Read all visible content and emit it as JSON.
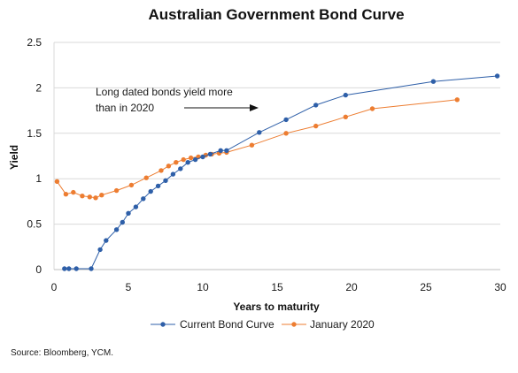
{
  "chart_data": {
    "type": "line",
    "title": "Australian Government Bond Curve",
    "xlabel": "Years to maturity",
    "ylabel": "Yield",
    "xlim": [
      0,
      30
    ],
    "ylim": [
      0,
      2.5
    ],
    "x_ticks": [
      "0",
      "5",
      "10",
      "15",
      "20",
      "25",
      "30"
    ],
    "y_ticks": [
      "0",
      "0.5",
      "1",
      "1.5",
      "2",
      "2.5"
    ],
    "grid": "horizontal",
    "legend_position": "bottom",
    "series": [
      {
        "name": "Current Bond Curve",
        "color": "#2e5fa8",
        "x": [
          0.7,
          1.0,
          1.5,
          2.5,
          3.1,
          3.5,
          4.2,
          4.6,
          5.0,
          5.5,
          6.0,
          6.5,
          7.0,
          7.5,
          8.0,
          8.5,
          9.0,
          9.5,
          10.0,
          10.5,
          11.2,
          11.6,
          13.8,
          15.6,
          17.6,
          19.6,
          25.5,
          29.8
        ],
        "y": [
          0.01,
          0.01,
          0.01,
          0.01,
          0.22,
          0.32,
          0.44,
          0.52,
          0.62,
          0.69,
          0.78,
          0.86,
          0.92,
          0.98,
          1.05,
          1.11,
          1.18,
          1.21,
          1.24,
          1.27,
          1.31,
          1.31,
          1.51,
          1.65,
          1.81,
          1.92,
          2.07,
          2.13
        ]
      },
      {
        "name": "January 2020",
        "color": "#ed7d31",
        "x": [
          0.2,
          0.8,
          1.3,
          1.9,
          2.4,
          2.8,
          3.2,
          4.2,
          5.2,
          6.2,
          7.2,
          7.7,
          8.2,
          8.7,
          9.2,
          9.7,
          10.2,
          10.6,
          11.1,
          11.6,
          13.3,
          15.6,
          17.6,
          19.6,
          21.4,
          27.1
        ],
        "y": [
          0.97,
          0.83,
          0.85,
          0.81,
          0.8,
          0.79,
          0.82,
          0.87,
          0.93,
          1.01,
          1.09,
          1.14,
          1.18,
          1.21,
          1.23,
          1.24,
          1.26,
          1.27,
          1.28,
          1.29,
          1.37,
          1.5,
          1.58,
          1.68,
          1.77,
          1.87
        ]
      }
    ],
    "annotation": {
      "line1": "Long dated bonds yield more",
      "line2": "than in 2020"
    }
  },
  "source": "Source: Bloomberg, YCM."
}
